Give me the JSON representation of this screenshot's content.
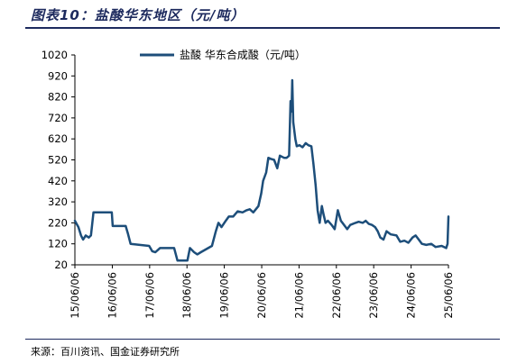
{
  "figure": {
    "title": "图表10：盐酸华东地区（元/吨）",
    "source": "来源：百川资讯、国金证券研究所"
  },
  "chart_data": {
    "type": "line",
    "legend": {
      "position": "top",
      "entries": [
        "盐酸 华东合成酸（元/吨）"
      ]
    },
    "grid": false,
    "ylim": [
      20,
      1020
    ],
    "yticks": [
      20,
      120,
      220,
      320,
      420,
      520,
      620,
      720,
      820,
      920,
      1020
    ],
    "xticks": [
      "15/06/06",
      "16/06/06",
      "17/06/06",
      "18/06/06",
      "19/06/06",
      "20/06/06",
      "21/06/06",
      "22/06/06",
      "23/06/06",
      "24/06/06",
      "25/06/06"
    ],
    "series": [
      {
        "name": "盐酸 华东合成酸（元/吨）",
        "color": "#1d4e7a",
        "points": [
          [
            "2015-06-06",
            230
          ],
          [
            "2015-07-10",
            200
          ],
          [
            "2015-08-05",
            160
          ],
          [
            "2015-08-25",
            140
          ],
          [
            "2015-09-20",
            160
          ],
          [
            "2015-10-20",
            150
          ],
          [
            "2015-11-10",
            160
          ],
          [
            "2015-12-05",
            270
          ],
          [
            "2016-03-05",
            270
          ],
          [
            "2016-06-01",
            270
          ],
          [
            "2016-06-10",
            205
          ],
          [
            "2016-10-15",
            205
          ],
          [
            "2016-11-05",
            170
          ],
          [
            "2016-12-01",
            120
          ],
          [
            "2017-06-01",
            110
          ],
          [
            "2017-07-01",
            85
          ],
          [
            "2017-08-01",
            80
          ],
          [
            "2017-09-15",
            100
          ],
          [
            "2017-11-20",
            100
          ],
          [
            "2018-02-01",
            100
          ],
          [
            "2018-03-05",
            40
          ],
          [
            "2018-06-10",
            40
          ],
          [
            "2018-07-05",
            100
          ],
          [
            "2018-08-15",
            80
          ],
          [
            "2018-09-15",
            70
          ],
          [
            "2018-10-20",
            80
          ],
          [
            "2019-02-05",
            110
          ],
          [
            "2019-03-15",
            180
          ],
          [
            "2019-04-10",
            220
          ],
          [
            "2019-05-10",
            200
          ],
          [
            "2019-06-20",
            230
          ],
          [
            "2019-07-20",
            250
          ],
          [
            "2019-09-01",
            250
          ],
          [
            "2019-10-15",
            275
          ],
          [
            "2019-12-01",
            270
          ],
          [
            "2020-01-10",
            280
          ],
          [
            "2020-02-10",
            285
          ],
          [
            "2020-03-15",
            270
          ],
          [
            "2020-05-05",
            300
          ],
          [
            "2020-06-01",
            360
          ],
          [
            "2020-06-20",
            420
          ],
          [
            "2020-07-20",
            460
          ],
          [
            "2020-08-10",
            530
          ],
          [
            "2020-09-01",
            525
          ],
          [
            "2020-10-05",
            520
          ],
          [
            "2020-11-05",
            480
          ],
          [
            "2020-12-01",
            540
          ],
          [
            "2021-01-10",
            530
          ],
          [
            "2021-02-05",
            530
          ],
          [
            "2021-03-01",
            540
          ],
          [
            "2021-03-15",
            800
          ],
          [
            "2021-03-25",
            750
          ],
          [
            "2021-04-01",
            900
          ],
          [
            "2021-04-10",
            700
          ],
          [
            "2021-05-01",
            620
          ],
          [
            "2021-05-15",
            585
          ],
          [
            "2021-06-10",
            590
          ],
          [
            "2021-07-10",
            580
          ],
          [
            "2021-08-10",
            600
          ],
          [
            "2021-09-05",
            590
          ],
          [
            "2021-10-05",
            585
          ],
          [
            "2021-10-25",
            500
          ],
          [
            "2021-11-15",
            400
          ],
          [
            "2021-12-05",
            280
          ],
          [
            "2021-12-25",
            220
          ],
          [
            "2022-01-15",
            300
          ],
          [
            "2022-02-01",
            260
          ],
          [
            "2022-02-20",
            220
          ],
          [
            "2022-03-15",
            230
          ],
          [
            "2022-04-20",
            210
          ],
          [
            "2022-05-20",
            190
          ],
          [
            "2022-06-20",
            280
          ],
          [
            "2022-07-20",
            230
          ],
          [
            "2022-08-20",
            210
          ],
          [
            "2022-09-20",
            190
          ],
          [
            "2022-10-20",
            210
          ],
          [
            "2022-12-10",
            220
          ],
          [
            "2023-01-10",
            225
          ],
          [
            "2023-02-20",
            220
          ],
          [
            "2023-03-20",
            230
          ],
          [
            "2023-04-20",
            215
          ],
          [
            "2023-05-20",
            210
          ],
          [
            "2023-06-20",
            200
          ],
          [
            "2023-07-15",
            180
          ],
          [
            "2023-08-10",
            150
          ],
          [
            "2023-09-10",
            140
          ],
          [
            "2023-10-10",
            180
          ],
          [
            "2023-11-20",
            165
          ],
          [
            "2024-01-15",
            160
          ],
          [
            "2024-02-20",
            130
          ],
          [
            "2024-04-01",
            135
          ],
          [
            "2024-05-10",
            125
          ],
          [
            "2024-06-20",
            150
          ],
          [
            "2024-07-20",
            160
          ],
          [
            "2024-08-20",
            140
          ],
          [
            "2024-09-20",
            120
          ],
          [
            "2024-11-01",
            115
          ],
          [
            "2024-12-20",
            120
          ],
          [
            "2025-02-01",
            105
          ],
          [
            "2025-04-01",
            110
          ],
          [
            "2025-05-15",
            100
          ],
          [
            "2025-05-28",
            120
          ],
          [
            "2025-06-06",
            250
          ]
        ]
      }
    ]
  }
}
